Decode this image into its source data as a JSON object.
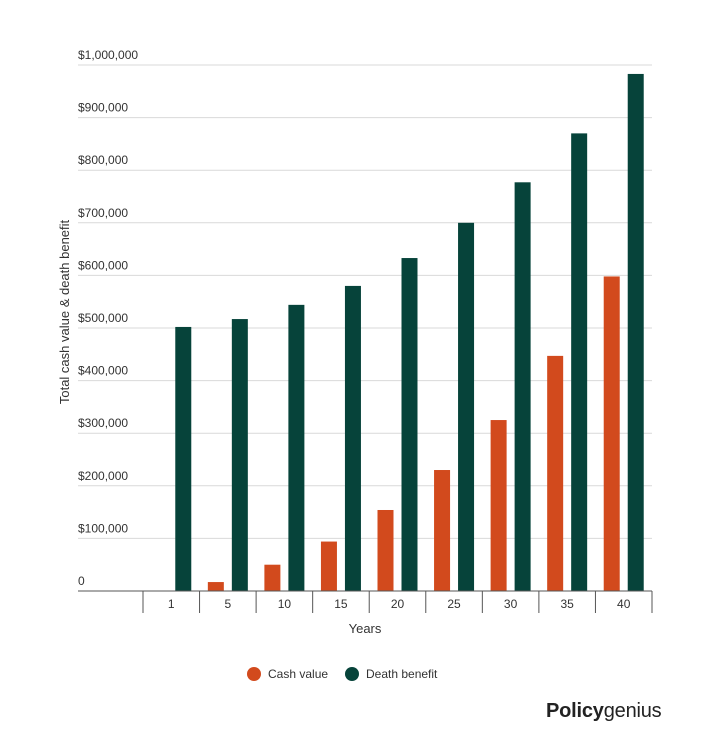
{
  "chart_data": {
    "type": "bar",
    "categories": [
      "1",
      "5",
      "10",
      "15",
      "20",
      "25",
      "30",
      "35",
      "40"
    ],
    "series": [
      {
        "name": "Cash value",
        "color": "#d24a1d",
        "values": [
          0,
          17000,
          50000,
          94000,
          154000,
          230000,
          325000,
          447000,
          598000
        ]
      },
      {
        "name": "Death benefit",
        "color": "#06433a",
        "values": [
          502000,
          517000,
          544000,
          580000,
          633000,
          700000,
          777000,
          870000,
          983000
        ]
      }
    ],
    "title": "",
    "xlabel": "Years",
    "ylabel": "Total cash value & death benefit",
    "ylim": [
      0,
      1000000
    ],
    "yticks": [
      0,
      100000,
      200000,
      300000,
      400000,
      500000,
      600000,
      700000,
      800000,
      900000,
      1000000
    ],
    "ytick_labels": [
      "0",
      "$100,000",
      "$200,000",
      "$300,000",
      "$400,000",
      "$500,000",
      "$600,000",
      "$700,000",
      "$800,000",
      "$900,000",
      "$1,000,000"
    ],
    "grid": true,
    "legend": "bottom-center"
  },
  "brand": {
    "part1": "Policy",
    "part2": "genius"
  }
}
